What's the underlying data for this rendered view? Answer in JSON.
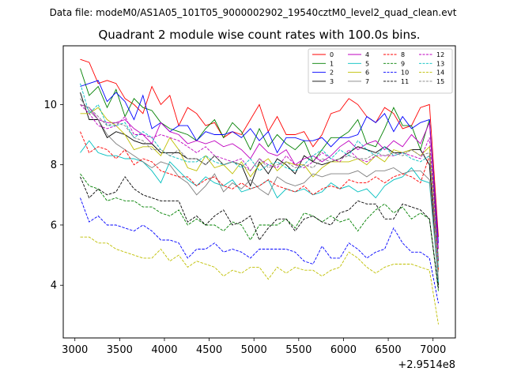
{
  "chart_data": {
    "type": "line",
    "suptitle": "Data file: modeM0/AS1A05_101T05_9000002902_19540cztM0_level2_quad_clean.evt",
    "title": "Quadrant 2 module wise count rates with 100.0s bins.",
    "xlabel": "",
    "ylabel": "",
    "x_offset_label": "+2.9514e8",
    "xlim": [
      2870,
      7250
    ],
    "ylim": [
      2.25,
      11.95
    ],
    "xticks": [
      3000,
      3500,
      4000,
      4500,
      5000,
      5500,
      6000,
      6500,
      7000
    ],
    "yticks": [
      4,
      6,
      8,
      10
    ],
    "x": [
      3060,
      3160,
      3260,
      3360,
      3460,
      3560,
      3660,
      3760,
      3860,
      3960,
      4060,
      4160,
      4260,
      4360,
      4460,
      4560,
      4660,
      4760,
      4860,
      4960,
      5060,
      5160,
      5260,
      5360,
      5460,
      5560,
      5660,
      5760,
      5860,
      5960,
      6060,
      6160,
      6260,
      6360,
      6460,
      6560,
      6660,
      6760,
      6860,
      6960,
      7060
    ],
    "series": [
      {
        "name": "0",
        "color": "#ff0000",
        "dash": "solid",
        "values": [
          11.5,
          11.4,
          10.7,
          10.8,
          10.7,
          10.2,
          10.0,
          9.7,
          10.6,
          10.0,
          10.3,
          9.3,
          9.9,
          9.7,
          9.3,
          9.4,
          8.9,
          9.1,
          9.0,
          9.5,
          10.0,
          9.1,
          9.6,
          9.0,
          9.0,
          9.1,
          8.6,
          9.0,
          9.7,
          9.8,
          10.2,
          10.0,
          9.6,
          9.4,
          9.9,
          9.7,
          9.2,
          9.3,
          9.9,
          10.0,
          5.6
        ]
      },
      {
        "name": "1",
        "color": "#008000",
        "dash": "solid",
        "values": [
          11.2,
          10.3,
          10.6,
          9.9,
          10.5,
          9.6,
          10.2,
          9.9,
          9.8,
          9.4,
          9.2,
          9.1,
          9.0,
          8.8,
          9.2,
          9.5,
          8.9,
          9.4,
          9.1,
          8.5,
          9.2,
          8.6,
          9.0,
          8.7,
          8.5,
          8.8,
          8.1,
          8.5,
          8.9,
          8.9,
          9.1,
          9.5,
          8.7,
          8.6,
          9.2,
          9.9,
          9.3,
          9.3,
          8.5,
          9.5,
          4.8
        ]
      },
      {
        "name": "2",
        "color": "#0000ff",
        "dash": "solid",
        "values": [
          10.6,
          10.7,
          10.8,
          10.1,
          10.4,
          10.1,
          9.5,
          10.3,
          9.2,
          9.4,
          9.1,
          9.3,
          9.3,
          8.8,
          9.1,
          9.0,
          9.0,
          9.1,
          8.9,
          9.2,
          8.8,
          9.1,
          8.4,
          8.9,
          8.9,
          8.8,
          8.8,
          8.9,
          8.6,
          8.9,
          8.9,
          9.0,
          9.6,
          9.4,
          9.7,
          9.1,
          9.6,
          9.2,
          9.4,
          9.5,
          5.4
        ]
      },
      {
        "name": "3",
        "color": "#000000",
        "dash": "solid",
        "values": [
          10.4,
          9.5,
          9.5,
          8.9,
          9.1,
          9.0,
          8.8,
          8.7,
          8.7,
          8.4,
          8.4,
          8.4,
          8.2,
          8.2,
          8.0,
          8.3,
          8.0,
          8.1,
          8.0,
          7.3,
          8.1,
          7.7,
          8.2,
          8.0,
          7.7,
          8.3,
          8.1,
          8.0,
          8.1,
          8.2,
          8.4,
          8.6,
          8.5,
          8.4,
          8.6,
          8.4,
          8.4,
          8.5,
          8.5,
          8.0,
          4.0
        ]
      },
      {
        "name": "4",
        "color": "#bf00bf",
        "dash": "solid",
        "values": [
          10.0,
          9.9,
          9.5,
          9.4,
          9.4,
          9.5,
          9.2,
          9.0,
          8.7,
          9.4,
          9.1,
          9.0,
          8.7,
          8.8,
          8.7,
          8.8,
          8.6,
          8.7,
          8.5,
          8.2,
          8.7,
          8.4,
          8.3,
          8.5,
          8.0,
          8.2,
          8.3,
          8.1,
          8.3,
          8.6,
          8.8,
          8.5,
          8.7,
          8.8,
          8.5,
          8.8,
          8.6,
          9.0,
          8.7,
          9.4,
          5.2
        ]
      },
      {
        "name": "5",
        "color": "#00bfbf",
        "dash": "solid",
        "values": [
          8.4,
          8.8,
          8.4,
          8.3,
          8.3,
          8.2,
          8.2,
          8.1,
          7.8,
          7.4,
          8.1,
          7.8,
          7.5,
          7.3,
          7.6,
          7.4,
          7.3,
          7.5,
          7.1,
          7.2,
          7.3,
          7.5,
          6.9,
          7.2,
          7.1,
          7.2,
          7.0,
          7.1,
          7.4,
          7.2,
          7.3,
          7.1,
          7.2,
          6.9,
          7.3,
          7.5,
          7.6,
          7.9,
          7.5,
          7.4,
          4.1
        ]
      },
      {
        "name": "6",
        "color": "#bfbf00",
        "dash": "solid",
        "values": [
          9.7,
          9.7,
          9.9,
          9.5,
          9.3,
          9.0,
          8.5,
          8.6,
          8.6,
          8.3,
          8.9,
          8.5,
          7.9,
          7.8,
          8.3,
          7.9,
          8.0,
          7.7,
          8.1,
          7.6,
          8.0,
          8.2,
          7.8,
          8.1,
          8.0,
          8.0,
          7.6,
          7.9,
          8.1,
          8.1,
          8.1,
          8.2,
          8.0,
          8.3,
          8.1,
          8.5,
          8.4,
          8.5,
          8.3,
          8.6,
          4.5
        ]
      },
      {
        "name": "7",
        "color": "#808080",
        "dash": "solid",
        "values": [
          10.2,
          9.8,
          9.5,
          9.0,
          8.7,
          8.5,
          8.3,
          8.1,
          7.9,
          8.1,
          8.0,
          7.6,
          7.4,
          7.0,
          7.3,
          7.7,
          7.1,
          7.4,
          7.2,
          7.5,
          7.2,
          7.0,
          7.6,
          7.4,
          7.3,
          7.4,
          7.7,
          7.6,
          7.7,
          7.7,
          7.7,
          7.8,
          7.6,
          7.8,
          7.8,
          7.9,
          7.7,
          7.8,
          7.8,
          7.5,
          4.2
        ]
      },
      {
        "name": "8",
        "color": "#ff0000",
        "dash": "dashed",
        "values": [
          9.1,
          8.4,
          8.6,
          8.5,
          8.2,
          8.5,
          8.0,
          8.2,
          8.1,
          7.8,
          7.7,
          7.6,
          7.6,
          7.3,
          7.5,
          7.6,
          7.3,
          7.2,
          7.4,
          7.2,
          7.3,
          7.5,
          7.3,
          7.2,
          7.1,
          7.3,
          7.0,
          7.2,
          7.3,
          7.2,
          7.5,
          7.4,
          7.4,
          7.6,
          7.4,
          7.6,
          7.7,
          7.6,
          7.4,
          8.3,
          4.5
        ]
      },
      {
        "name": "9",
        "color": "#008000",
        "dash": "dashed",
        "values": [
          7.7,
          7.3,
          7.2,
          6.8,
          6.9,
          6.8,
          6.8,
          6.6,
          6.6,
          6.4,
          6.3,
          6.5,
          6.0,
          6.2,
          6.0,
          6.0,
          5.8,
          6.1,
          6.0,
          5.5,
          6.0,
          6.0,
          6.0,
          6.2,
          5.9,
          6.4,
          6.3,
          6.1,
          6.3,
          6.1,
          6.2,
          5.8,
          6.2,
          6.5,
          6.7,
          6.4,
          6.6,
          6.2,
          6.4,
          6.2,
          3.8
        ]
      },
      {
        "name": "10",
        "color": "#0000ff",
        "dash": "dashed",
        "values": [
          6.9,
          6.1,
          6.3,
          6.0,
          6.0,
          5.9,
          5.8,
          6.0,
          5.8,
          5.5,
          5.5,
          5.4,
          4.9,
          5.2,
          5.2,
          5.4,
          5.1,
          5.2,
          5.1,
          4.9,
          5.2,
          5.2,
          5.2,
          5.2,
          5.1,
          4.8,
          4.7,
          5.3,
          4.9,
          4.9,
          5.4,
          5.2,
          4.9,
          5.1,
          5.2,
          5.9,
          5.4,
          5.1,
          5.1,
          4.9,
          3.4
        ]
      },
      {
        "name": "11",
        "color": "#000000",
        "dash": "dashed",
        "values": [
          7.6,
          6.9,
          7.2,
          7.0,
          7.1,
          7.6,
          7.2,
          7.0,
          6.9,
          6.8,
          6.8,
          6.8,
          6.1,
          6.3,
          6.0,
          6.3,
          6.5,
          6.0,
          6.1,
          6.3,
          5.5,
          5.9,
          6.2,
          6.2,
          5.8,
          6.2,
          6.3,
          6.1,
          6.0,
          6.4,
          6.5,
          6.8,
          6.7,
          6.7,
          6.2,
          6.2,
          6.7,
          6.6,
          6.5,
          6.2,
          3.9
        ]
      },
      {
        "name": "12",
        "color": "#bf00bf",
        "dash": "dashed",
        "values": [
          10.0,
          9.7,
          9.3,
          9.2,
          9.3,
          9.6,
          9.0,
          9.0,
          8.9,
          9.0,
          8.9,
          8.8,
          8.6,
          8.4,
          8.6,
          8.3,
          8.2,
          8.1,
          8.2,
          7.8,
          8.2,
          8.0,
          7.9,
          8.3,
          8.0,
          7.9,
          8.1,
          8.4,
          8.2,
          8.1,
          8.5,
          8.2,
          8.1,
          8.3,
          8.3,
          8.3,
          8.4,
          8.3,
          8.2,
          8.9,
          4.8
        ]
      },
      {
        "name": "13",
        "color": "#00bfbf",
        "dash": "dashed",
        "values": [
          10.7,
          9.7,
          10.0,
          9.3,
          9.3,
          9.4,
          8.9,
          9.1,
          8.9,
          8.5,
          8.3,
          8.2,
          8.1,
          8.1,
          8.3,
          8.1,
          8.0,
          8.1,
          7.9,
          8.2,
          7.8,
          8.0,
          8.1,
          7.9,
          7.8,
          8.0,
          8.3,
          8.5,
          8.2,
          8.5,
          8.3,
          8.8,
          8.5,
          8.3,
          8.6,
          8.3,
          8.4,
          8.2,
          8.1,
          8.3,
          4.6
        ]
      },
      {
        "name": "14",
        "color": "#bfbf00",
        "dash": "dashed",
        "values": [
          5.6,
          5.6,
          5.4,
          5.4,
          5.2,
          5.1,
          5.0,
          4.9,
          4.9,
          5.2,
          4.8,
          5.0,
          4.6,
          4.8,
          4.7,
          4.6,
          4.3,
          4.5,
          4.4,
          4.6,
          4.6,
          4.2,
          4.6,
          4.4,
          4.6,
          4.5,
          4.5,
          4.3,
          4.5,
          4.6,
          5.1,
          4.9,
          4.6,
          4.4,
          4.6,
          4.7,
          4.7,
          4.7,
          4.6,
          4.5,
          2.7
        ]
      },
      {
        "name": "15",
        "color": "#808080",
        "dash": "dashed",
        "values": [
          10.0,
          9.9,
          9.6,
          9.3,
          9.4,
          9.3,
          8.9,
          8.8,
          8.5,
          8.5,
          8.3,
          8.5,
          8.2,
          8.2,
          8.0,
          8.3,
          8.0,
          8.1,
          8.0,
          7.8,
          8.2,
          7.9,
          8.0,
          8.1,
          7.9,
          8.0,
          7.9,
          8.2,
          8.1,
          8.2,
          8.3,
          8.2,
          8.2,
          8.4,
          8.3,
          8.4,
          8.3,
          8.5,
          8.3,
          8.4,
          4.4
        ]
      }
    ],
    "legend": {
      "placement": "top-right",
      "columns": 4
    }
  }
}
